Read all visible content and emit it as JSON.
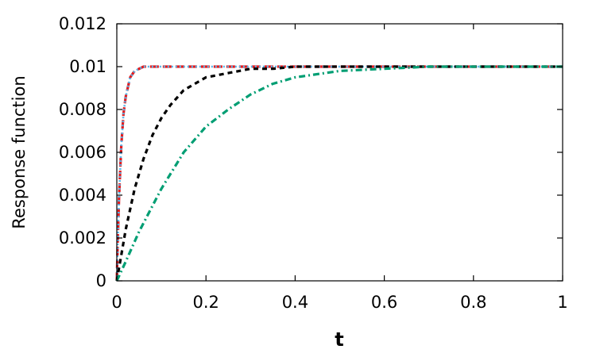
{
  "chart_data": {
    "type": "line",
    "title": "",
    "xlabel": "t",
    "ylabel": "Response function",
    "xlim": [
      0,
      1
    ],
    "ylim": [
      0,
      0.012
    ],
    "xticks": [
      "0",
      "0.2",
      "0.4",
      "0.6",
      "0.8",
      "1"
    ],
    "xtick_values": [
      0,
      0.2,
      0.4,
      0.6,
      0.8,
      1
    ],
    "yticks": [
      "0",
      "0.002",
      "0.004",
      "0.006",
      "0.008",
      "0.01",
      "0.012"
    ],
    "ytick_values": [
      0,
      0.002,
      0.004,
      0.006,
      0.008,
      0.01,
      0.012
    ],
    "grid": false,
    "legend": "none",
    "series": [
      {
        "color": "#e41a1c",
        "dash": "long-dash",
        "x": [
          0,
          0.002,
          0.005,
          0.01,
          0.015,
          0.02,
          0.03,
          0.04,
          0.05,
          0.06,
          0.08,
          0.1,
          0.2,
          0.4,
          0.6,
          0.8,
          1.0
        ],
        "y": [
          0,
          0.0018,
          0.0039,
          0.0063,
          0.0078,
          0.0086,
          0.0095,
          0.0098,
          0.0099,
          0.01,
          0.01,
          0.01,
          0.01,
          0.01,
          0.01,
          0.01,
          0.01
        ]
      },
      {
        "color": "#56b4e9",
        "dash": "dotted",
        "x": [
          0,
          0.002,
          0.005,
          0.01,
          0.015,
          0.02,
          0.03,
          0.04,
          0.05,
          0.06,
          0.08,
          0.1,
          0.2,
          0.4,
          0.6,
          0.8,
          1.0
        ],
        "y": [
          0,
          0.0018,
          0.0039,
          0.0063,
          0.0078,
          0.0086,
          0.0095,
          0.0098,
          0.0099,
          0.01,
          0.01,
          0.01,
          0.01,
          0.01,
          0.01,
          0.01,
          0.01
        ]
      },
      {
        "color": "#000000",
        "dash": "dashed",
        "x": [
          0,
          0.02,
          0.04,
          0.06,
          0.08,
          0.1,
          0.12,
          0.15,
          0.2,
          0.25,
          0.3,
          0.35,
          0.4,
          0.5,
          0.6,
          0.8,
          1.0
        ],
        "y": [
          0,
          0.0024,
          0.0043,
          0.0057,
          0.0068,
          0.0076,
          0.0082,
          0.0089,
          0.0095,
          0.0097,
          0.0099,
          0.0099,
          0.01,
          0.01,
          0.01,
          0.01,
          0.01
        ]
      },
      {
        "color": "#009e73",
        "dash": "dash-dot",
        "x": [
          0,
          0.02,
          0.05,
          0.1,
          0.15,
          0.2,
          0.25,
          0.3,
          0.35,
          0.4,
          0.5,
          0.6,
          0.7,
          0.8,
          1.0
        ],
        "y": [
          0,
          0.0009,
          0.0023,
          0.0043,
          0.006,
          0.0072,
          0.008,
          0.0087,
          0.0092,
          0.0095,
          0.0098,
          0.0099,
          0.01,
          0.01,
          0.01
        ]
      }
    ]
  }
}
